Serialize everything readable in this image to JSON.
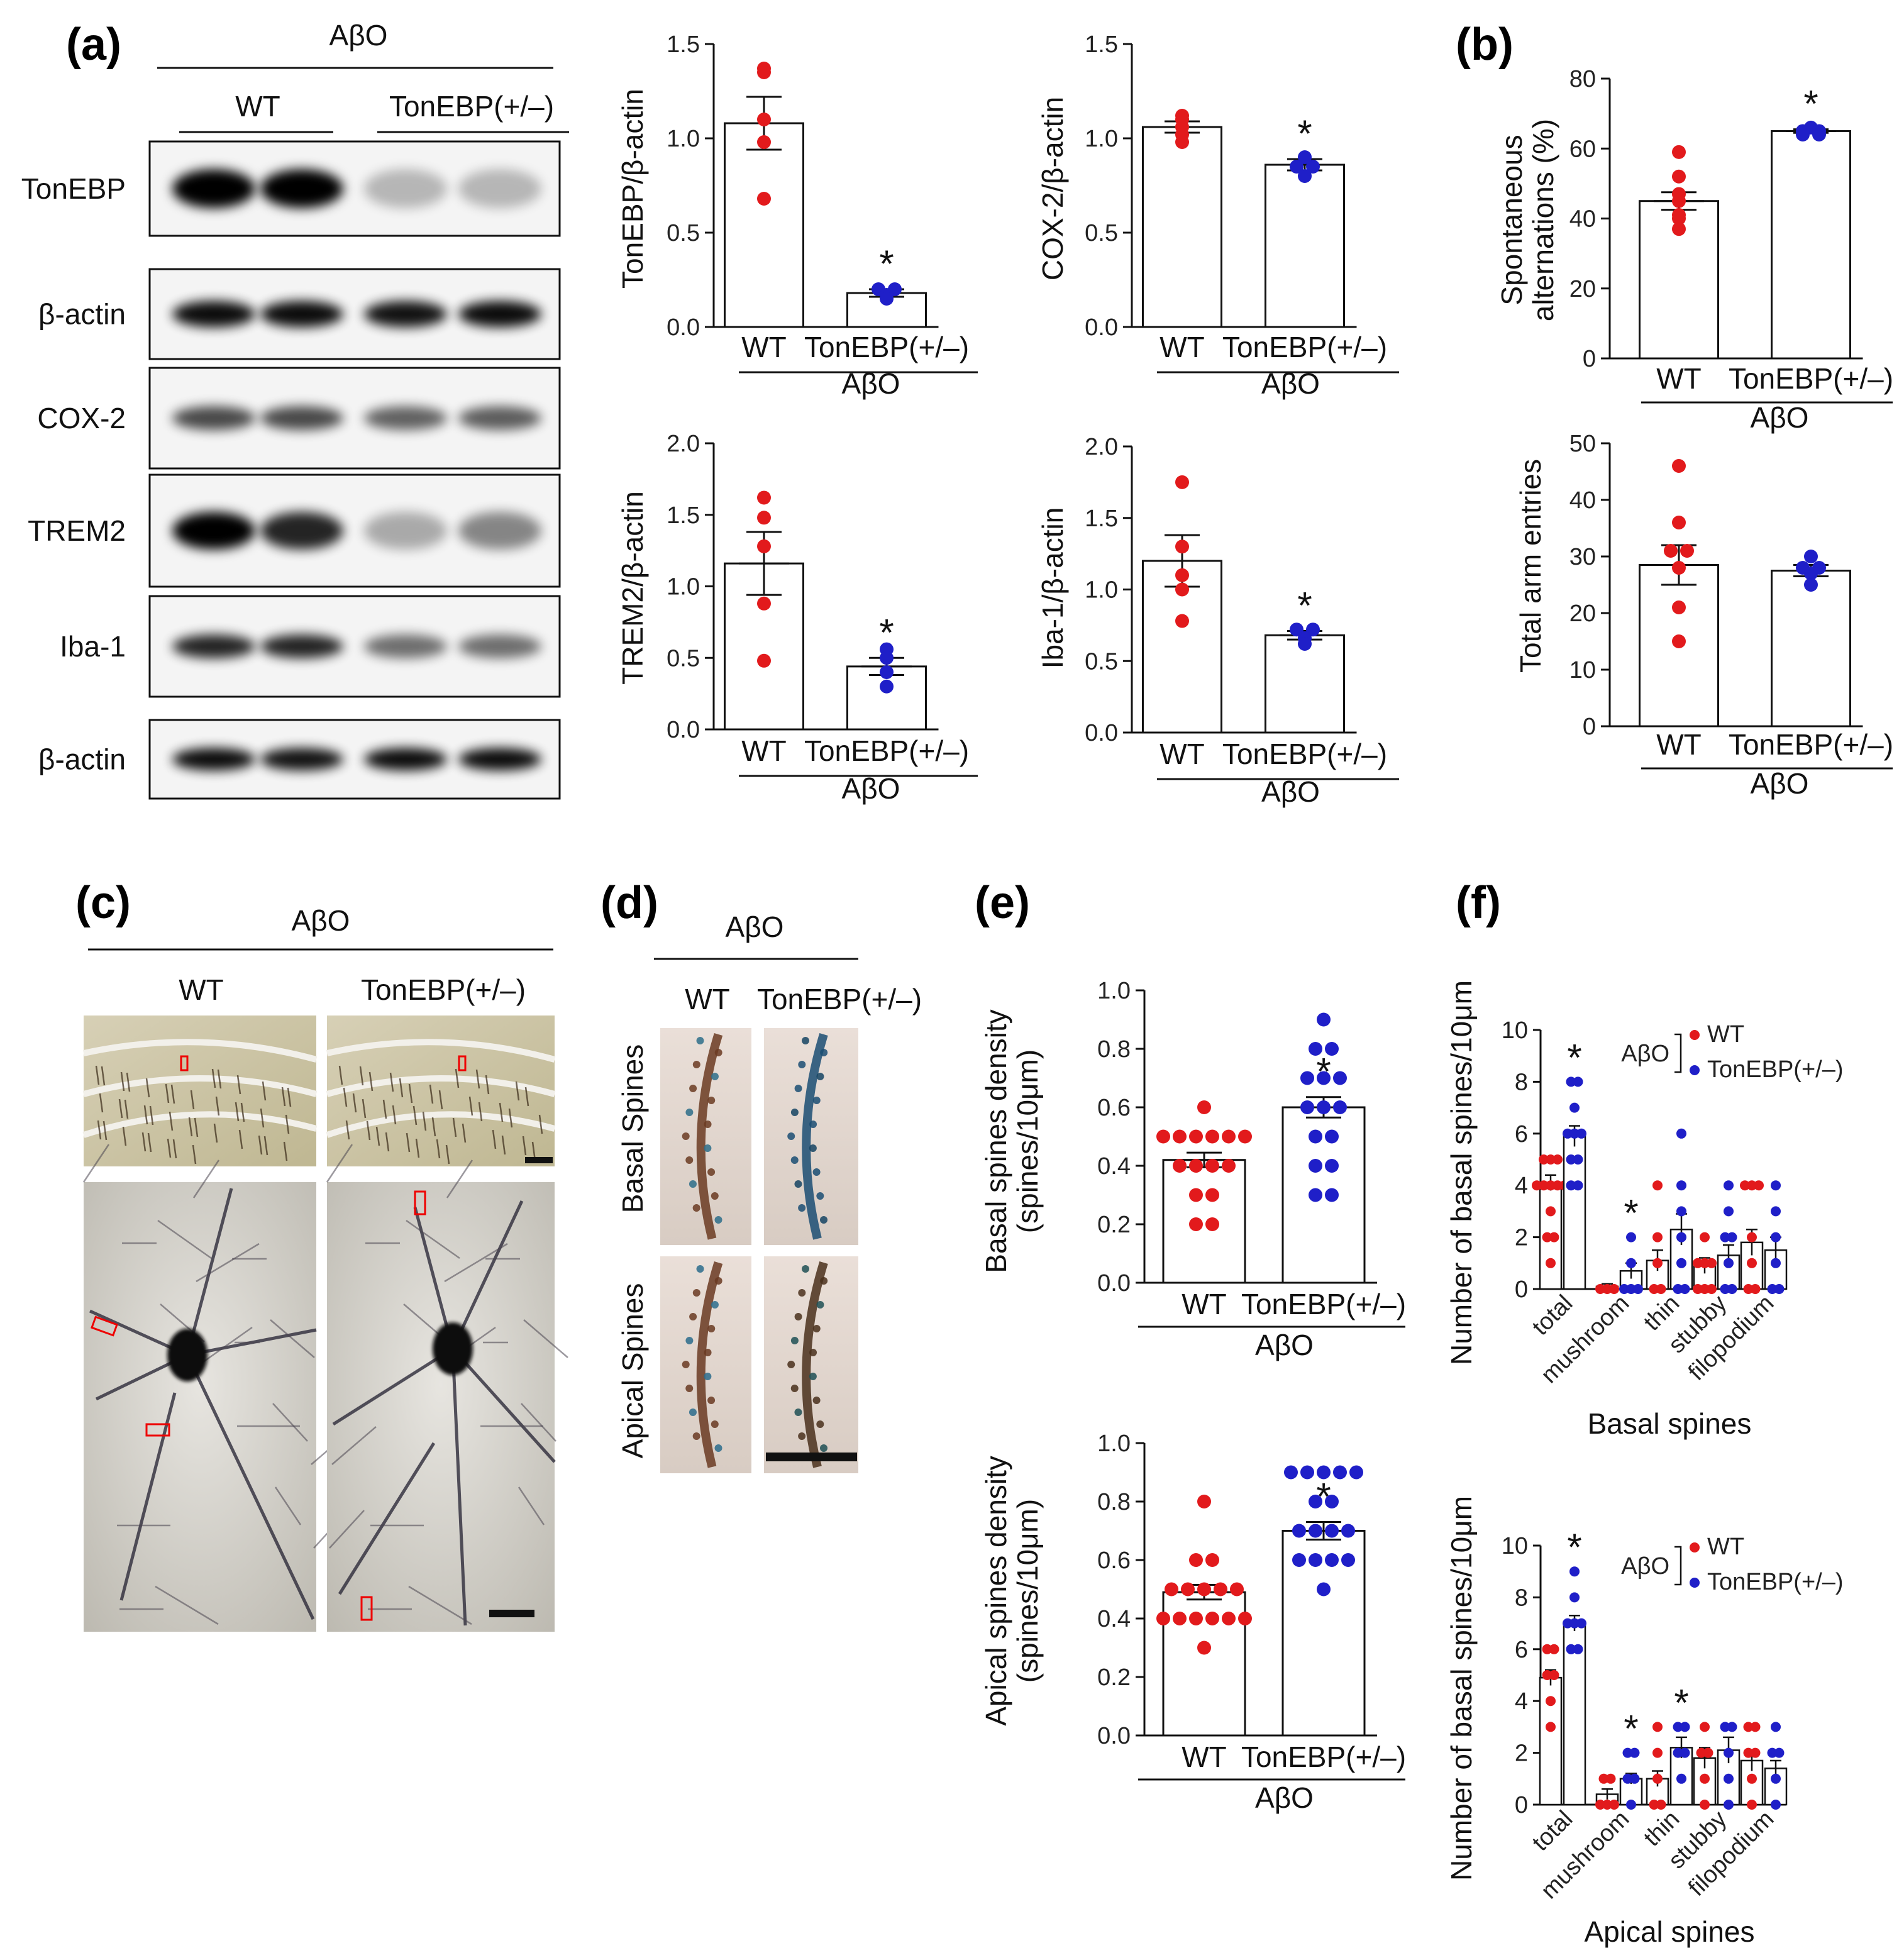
{
  "colors": {
    "wt": "#e21a1c",
    "ton": "#1f1fc8",
    "axis": "#111111"
  },
  "panel_labels": [
    "(a)",
    "(b)",
    "(c)",
    "(d)",
    "(e)",
    "(f)"
  ],
  "blot": {
    "group_label": "AβO",
    "lane_groups": [
      "WT",
      "TonEBP(+/–)"
    ],
    "bands": [
      "TonEBP",
      "β-actin",
      "COX-2",
      "TREM2",
      "Iba-1",
      "β-actin"
    ]
  },
  "images": {
    "c_group": "AβO",
    "c_cols": [
      "WT",
      "TonEBP(+/–)"
    ],
    "d_group": "AβO",
    "d_cols": [
      "WT",
      "TonEBP(+/–)"
    ],
    "d_rows": [
      "Basal Spines",
      "Apical Spines"
    ]
  },
  "chart_data": [
    {
      "id": "a1",
      "type": "bar",
      "ylabel": "TonEBP/β-actin",
      "xlabel": "AβO",
      "categories": [
        "WT",
        "TonEBP(+/–)"
      ],
      "ylim": [
        0,
        1.5
      ],
      "yticks": [
        0.0,
        0.5,
        1.0,
        1.5
      ],
      "tickfmt": 1,
      "values": [
        1.08,
        0.18
      ],
      "sem": [
        0.14,
        0.02
      ],
      "sig": [
        false,
        true
      ],
      "points": [
        [
          1.37,
          1.35,
          1.1,
          0.98,
          0.68
        ],
        [
          0.2,
          0.2,
          0.17,
          0.15
        ]
      ]
    },
    {
      "id": "a2",
      "type": "bar",
      "ylabel": "COX-2/β-actin",
      "xlabel": "AβO",
      "categories": [
        "WT",
        "TonEBP(+/–)"
      ],
      "ylim": [
        0,
        1.5
      ],
      "yticks": [
        0.0,
        0.5,
        1.0,
        1.5
      ],
      "tickfmt": 1,
      "values": [
        1.06,
        0.86
      ],
      "sem": [
        0.03,
        0.03
      ],
      "sig": [
        false,
        true
      ],
      "points": [
        [
          1.12,
          1.1,
          1.06,
          1.02,
          0.98
        ],
        [
          0.9,
          0.85,
          0.85,
          0.8
        ]
      ]
    },
    {
      "id": "a3",
      "type": "bar",
      "ylabel": "TREM2/β-actin",
      "xlabel": "AβO",
      "categories": [
        "WT",
        "TonEBP(+/–)"
      ],
      "ylim": [
        0,
        2.0
      ],
      "yticks": [
        0.0,
        0.5,
        1.0,
        1.5,
        2.0
      ],
      "tickfmt": 1,
      "values": [
        1.16,
        0.44
      ],
      "sem": [
        0.22,
        0.06
      ],
      "sig": [
        false,
        true
      ],
      "points": [
        [
          1.62,
          1.48,
          1.28,
          0.88,
          0.48
        ],
        [
          0.56,
          0.5,
          0.4,
          0.3
        ]
      ]
    },
    {
      "id": "a4",
      "type": "bar",
      "ylabel": "Iba-1/β-actin",
      "xlabel": "AβO",
      "categories": [
        "WT",
        "TonEBP(+/–)"
      ],
      "ylim": [
        0,
        2.0
      ],
      "yticks": [
        0.0,
        0.5,
        1.0,
        1.5,
        2.0
      ],
      "tickfmt": 1,
      "values": [
        1.2,
        0.68
      ],
      "sem": [
        0.18,
        0.03
      ],
      "sig": [
        false,
        true
      ],
      "points": [
        [
          1.75,
          1.3,
          1.1,
          1.0,
          0.78
        ],
        [
          0.72,
          0.72,
          0.66,
          0.62
        ]
      ]
    },
    {
      "id": "b1",
      "type": "bar",
      "ylabel": "Spontaneous alternations (%)",
      "xlabel": "AβO",
      "categories": [
        "WT",
        "TonEBP(+/–)"
      ],
      "ylim": [
        0,
        80
      ],
      "yticks": [
        0,
        20,
        40,
        60,
        80
      ],
      "tickfmt": 0,
      "values": [
        45,
        65
      ],
      "sem": [
        2.5,
        0.5
      ],
      "sig": [
        false,
        true
      ],
      "points": [
        [
          59,
          52,
          47,
          45,
          41,
          40,
          37
        ],
        [
          66,
          65,
          65,
          64,
          64
        ]
      ]
    },
    {
      "id": "b2",
      "type": "bar",
      "ylabel": "Total arm entries",
      "xlabel": "",
      "categories": [
        "WT",
        "TonEBP(+/–)"
      ],
      "ylim": [
        0,
        50
      ],
      "yticks": [
        0,
        10,
        20,
        30,
        40,
        50
      ],
      "tickfmt": 0,
      "values": [
        28.5,
        27.5
      ],
      "sem": [
        3.5,
        1.0
      ],
      "sig": [
        false,
        false
      ],
      "points": [
        [
          46,
          36,
          31,
          31,
          28,
          21,
          15
        ],
        [
          30,
          28,
          28,
          27,
          25
        ]
      ]
    },
    {
      "id": "e1",
      "type": "bar",
      "ylabel": "Basal spines density (spines/10μm)",
      "xlabel": "AβO",
      "categories": [
        "WT",
        "TonEBP(+/–)"
      ],
      "ylim": [
        0,
        1.0
      ],
      "yticks": [
        0.0,
        0.2,
        0.4,
        0.6,
        0.8,
        1.0
      ],
      "tickfmt": 1,
      "values": [
        0.42,
        0.6
      ],
      "sem": [
        0.025,
        0.035
      ],
      "sig": [
        false,
        true
      ],
      "points": [
        [
          0.6,
          0.5,
          0.5,
          0.5,
          0.5,
          0.5,
          0.5,
          0.4,
          0.4,
          0.4,
          0.4,
          0.3,
          0.3,
          0.2,
          0.2
        ],
        [
          0.9,
          0.8,
          0.8,
          0.7,
          0.7,
          0.7,
          0.6,
          0.6,
          0.6,
          0.5,
          0.5,
          0.4,
          0.4,
          0.3,
          0.3
        ]
      ]
    },
    {
      "id": "e2",
      "type": "bar",
      "ylabel": "Apical spines density (spines/10μm)",
      "xlabel": "AβO",
      "categories": [
        "WT",
        "TonEBP(+/–)"
      ],
      "ylim": [
        0,
        1.0
      ],
      "yticks": [
        0.0,
        0.2,
        0.4,
        0.6,
        0.8,
        1.0
      ],
      "tickfmt": 1,
      "values": [
        0.49,
        0.7
      ],
      "sem": [
        0.025,
        0.03
      ],
      "sig": [
        false,
        true
      ],
      "points": [
        [
          0.8,
          0.6,
          0.6,
          0.5,
          0.5,
          0.5,
          0.5,
          0.5,
          0.4,
          0.4,
          0.4,
          0.4,
          0.4,
          0.4,
          0.3
        ],
        [
          0.9,
          0.9,
          0.9,
          0.9,
          0.9,
          0.8,
          0.8,
          0.7,
          0.7,
          0.7,
          0.7,
          0.6,
          0.6,
          0.6,
          0.6,
          0.5
        ]
      ]
    },
    {
      "id": "f1",
      "type": "bar",
      "ylabel": "Number of basal spines/10μm",
      "xlabel": "Basal spines",
      "categories": [
        "total",
        "mushroom",
        "thin",
        "stubby",
        "filopodium"
      ],
      "ylim": [
        0,
        10
      ],
      "yticks": [
        0,
        2,
        4,
        6,
        8,
        10
      ],
      "tickfmt": 0,
      "legend": {
        "group": "AβO",
        "entries": [
          "WT",
          "TonEBP(+/–)"
        ]
      },
      "series": [
        {
          "values": [
            4.1,
            0.1,
            1.1,
            0.9,
            1.8
          ],
          "sem": [
            0.3,
            0.1,
            0.4,
            0.3,
            0.5
          ],
          "points": [
            [
              5,
              5,
              5,
              4,
              4,
              4,
              4,
              4,
              3,
              2,
              2,
              1
            ],
            [
              0,
              0,
              0
            ],
            [
              4,
              2,
              1,
              0,
              0
            ],
            [
              2,
              1,
              1,
              1,
              0,
              0,
              0
            ],
            [
              4,
              4,
              4,
              2,
              1,
              0,
              0
            ]
          ]
        },
        {
          "name": "TonEBP(+/–)",
          "values": [
            5.9,
            0.7,
            2.3,
            1.3,
            1.5
          ],
          "sem": [
            0.4,
            0.3,
            0.6,
            0.4,
            0.5
          ],
          "points": [
            [
              8,
              8,
              7,
              6,
              6,
              6,
              5,
              5,
              4,
              4
            ],
            [
              2,
              1,
              0,
              0,
              0
            ],
            [
              6,
              4,
              3,
              2,
              1,
              0,
              0
            ],
            [
              4,
              3,
              2,
              2,
              1,
              0,
              0
            ],
            [
              4,
              3,
              2,
              1,
              0,
              0
            ]
          ]
        }
      ],
      "sig": [
        true,
        true,
        false,
        false,
        false
      ]
    },
    {
      "id": "f2",
      "type": "bar",
      "ylabel": "Number of basal spines/10μm",
      "xlabel": "Apical spines",
      "categories": [
        "total",
        "mushroom",
        "thin",
        "stubby",
        "filopodium"
      ],
      "ylim": [
        0,
        10
      ],
      "yticks": [
        0,
        2,
        4,
        6,
        8,
        10
      ],
      "tickfmt": 0,
      "legend": {
        "group": "AβO",
        "entries": [
          "WT",
          "TonEBP(+/–)"
        ]
      },
      "series": [
        {
          "values": [
            4.9,
            0.4,
            1.0,
            1.8,
            1.7
          ],
          "sem": [
            0.3,
            0.2,
            0.3,
            0.4,
            0.4
          ],
          "points": [
            [
              6,
              6,
              5,
              5,
              4,
              3
            ],
            [
              1,
              1,
              0,
              0,
              0
            ],
            [
              3,
              2,
              1,
              0,
              0
            ],
            [
              3,
              2,
              2,
              1,
              0
            ],
            [
              3,
              3,
              2,
              2,
              1,
              0
            ]
          ]
        },
        {
          "name": "TonEBP(+/–)",
          "values": [
            7.0,
            1.0,
            2.2,
            2.1,
            1.4
          ],
          "sem": [
            0.3,
            0.2,
            0.4,
            0.5,
            0.3
          ],
          "points": [
            [
              9,
              8,
              7,
              7,
              7,
              6,
              6
            ],
            [
              2,
              2,
              1,
              1,
              0
            ],
            [
              3,
              3,
              2,
              2,
              1
            ],
            [
              3,
              3,
              2,
              1,
              0
            ],
            [
              3,
              2,
              2,
              1,
              0
            ]
          ]
        }
      ],
      "sig": [
        true,
        true,
        true,
        false,
        false
      ]
    }
  ]
}
